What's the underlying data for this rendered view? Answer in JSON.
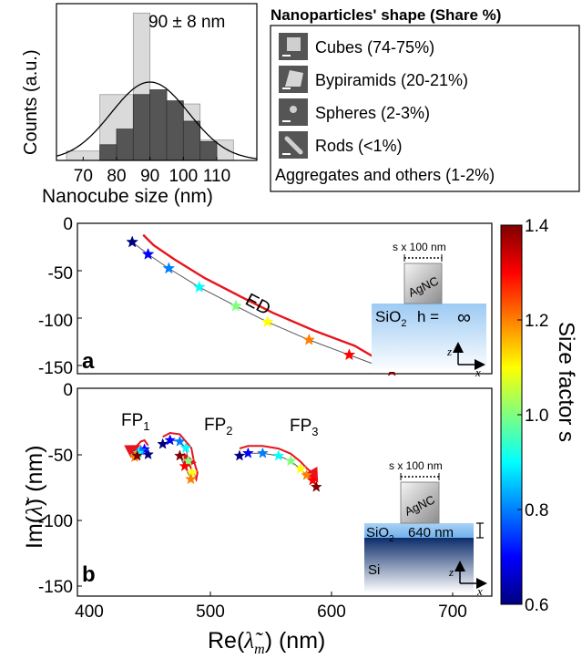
{
  "chart_data": [
    {
      "type": "bar",
      "panel": "histogram",
      "annotation": "90 ± 8 nm",
      "xlabel": "Nanocube size (nm)",
      "ylabel": "Counts (a.u.)",
      "xlim": [
        62,
        122
      ],
      "ylim": [
        0,
        100
      ],
      "xticks": [
        70,
        80,
        90,
        100,
        110
      ],
      "bars": {
        "light": [
          {
            "x0": 65,
            "x1": 75,
            "value": 6
          },
          {
            "x0": 75,
            "x1": 85,
            "value": 42
          },
          {
            "x0": 85,
            "x1": 90,
            "value": 94
          },
          {
            "x0": 90,
            "x1": 95,
            "value": 45
          },
          {
            "x0": 95,
            "x1": 105,
            "value": 36
          },
          {
            "x0": 105,
            "x1": 115,
            "value": 13
          }
        ],
        "dark": [
          {
            "x0": 75,
            "x1": 80,
            "value": 10
          },
          {
            "x0": 80,
            "x1": 85,
            "value": 20
          },
          {
            "x0": 85,
            "x1": 90,
            "value": 42
          },
          {
            "x0": 90,
            "x1": 95,
            "value": 45
          },
          {
            "x0": 95,
            "x1": 100,
            "value": 38
          },
          {
            "x0": 100,
            "x1": 105,
            "value": 25
          },
          {
            "x0": 105,
            "x1": 110,
            "value": 12
          }
        ]
      },
      "fit": {
        "type": "gaussian",
        "mean": 90,
        "sigma": 8,
        "peak": 50
      }
    },
    {
      "type": "scatter",
      "panel": "a",
      "ylabel": "Im(λ̃) (nm)",
      "xlim": [
        400,
        740
      ],
      "ylim": [
        -160,
        0
      ],
      "yticks": [
        0,
        -50,
        -100,
        -150
      ],
      "annotation": "ED",
      "points": [
        {
          "x": 445,
          "y": -20,
          "s": 0.6
        },
        {
          "x": 458,
          "y": -33,
          "s": 0.7
        },
        {
          "x": 475,
          "y": -48,
          "s": 0.8
        },
        {
          "x": 500,
          "y": -68,
          "s": 0.9
        },
        {
          "x": 530,
          "y": -88,
          "s": 1.0
        },
        {
          "x": 556,
          "y": -105,
          "s": 1.1
        },
        {
          "x": 590,
          "y": -124,
          "s": 1.2
        },
        {
          "x": 623,
          "y": -140,
          "s": 1.3
        },
        {
          "x": 658,
          "y": -157,
          "s": 1.4
        }
      ]
    },
    {
      "type": "scatter",
      "panel": "b",
      "xlabel": "Re(λ̃m) (nm)",
      "ylabel": "Im(λ̃) (nm)",
      "xlim": [
        400,
        740
      ],
      "ylim": [
        -160,
        0
      ],
      "xticks": [
        400,
        500,
        600,
        700
      ],
      "yticks": [
        0,
        -50,
        -100,
        -150
      ],
      "series": [
        {
          "name": "FP1",
          "points": [
            {
              "x": 458,
              "y": -51,
              "s": 0.6
            },
            {
              "x": 455,
              "y": -47,
              "s": 0.7
            },
            {
              "x": 452,
              "y": -48,
              "s": 0.8
            },
            {
              "x": 450,
              "y": -50,
              "s": 0.9
            },
            {
              "x": 448,
              "y": -52,
              "s": 1.0
            },
            {
              "x": 447,
              "y": -53,
              "s": 1.2
            },
            {
              "x": 449,
              "y": -52,
              "s": 1.4
            }
          ]
        },
        {
          "name": "FP2",
          "points": [
            {
              "x": 470,
              "y": -43,
              "s": 0.6
            },
            {
              "x": 476,
              "y": -40,
              "s": 0.7
            },
            {
              "x": 484,
              "y": -41,
              "s": 0.8
            },
            {
              "x": 489,
              "y": -46,
              "s": 0.9
            },
            {
              "x": 491,
              "y": -56,
              "s": 1.0
            },
            {
              "x": 494,
              "y": -65,
              "s": 1.1
            },
            {
              "x": 493,
              "y": -70,
              "s": 1.2
            },
            {
              "x": 488,
              "y": -60,
              "s": 1.3
            },
            {
              "x": 484,
              "y": -52,
              "s": 1.4
            }
          ]
        },
        {
          "name": "FP3",
          "points": [
            {
              "x": 533,
              "y": -52,
              "s": 0.6
            },
            {
              "x": 540,
              "y": -50,
              "s": 0.7
            },
            {
              "x": 552,
              "y": -50,
              "s": 0.8
            },
            {
              "x": 565,
              "y": -52,
              "s": 0.9
            },
            {
              "x": 575,
              "y": -56,
              "s": 1.0
            },
            {
              "x": 583,
              "y": -62,
              "s": 1.1
            },
            {
              "x": 588,
              "y": -67,
              "s": 1.2
            },
            {
              "x": 593,
              "y": -71,
              "s": 1.3
            },
            {
              "x": 596,
              "y": -76,
              "s": 1.4
            }
          ]
        }
      ]
    }
  ],
  "shape_legend": {
    "title": "Nanoparticles' shape (Share %)",
    "items": [
      "Cubes (74-75%)",
      "Bypiramids (20-21%)",
      "Spheres (2-3%)",
      "Rods (<1%)"
    ],
    "footer": "Aggregates and others (1-2%)"
  },
  "colorbar": {
    "label": "Size factor s",
    "ticks": [
      "1.4",
      "1.2",
      "1.0",
      "0.8",
      "0.6"
    ],
    "min": 0.6,
    "max": 1.4
  },
  "labels": {
    "ed": "ED",
    "fp1_base": "FP",
    "fp1_sub": "1",
    "fp2_base": "FP",
    "fp2_sub": "2",
    "fp3_base": "FP",
    "fp3_sub": "3",
    "panel_a": "a",
    "panel_b": "b",
    "y_tick_0": "0",
    "y_tick_m50": "-50",
    "y_tick_m100": "-100",
    "y_tick_m150": "-150",
    "x_tick_400": "400",
    "x_tick_500": "500",
    "x_tick_600": "600",
    "x_tick_700": "700",
    "hist_annotation": "90 ± 8 nm",
    "hist_xlabel": "Nanocube size (nm)",
    "hist_ylabel": "Counts (a.u.)",
    "h_ticks": [
      "70",
      "80",
      "90",
      "100",
      "110"
    ],
    "main_ylabel_prefix": "Im(",
    "main_ylabel_sym": "λ̃",
    "main_ylabel_suffix": ") (nm)",
    "main_xlabel_prefix": "Re(",
    "main_xlabel_sym": "λ̃",
    "main_xlabel_sub": "m",
    "main_xlabel_suffix": ") (nm)"
  },
  "insets": {
    "a": {
      "scale": "s x 100 nm",
      "particle": "AgNC",
      "substrate": "SiO",
      "sub2": "2",
      "h_label": "h =",
      "h_value": "∞",
      "axis_z": "z",
      "axis_x": "x"
    },
    "b": {
      "scale": "s x 100 nm",
      "particle": "AgNC",
      "substrate": "SiO",
      "sub2": "2",
      "thickness": "640 nm",
      "base": "Si",
      "axis_z": "z",
      "axis_x": "x"
    }
  },
  "colors": {
    "arrow": "#e8141b",
    "hist_light": "#dadada",
    "hist_dark": "#555555",
    "sio2_top": "#8fc3f2",
    "si_bottom": "#0a2a66"
  }
}
